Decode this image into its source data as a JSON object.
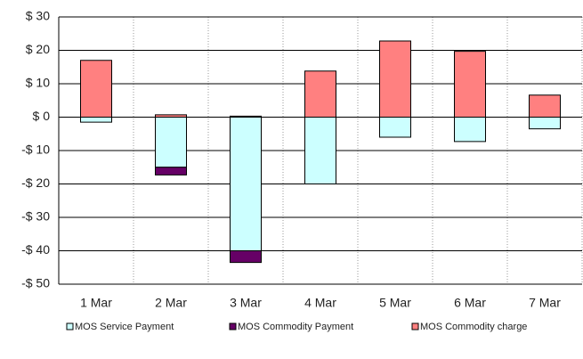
{
  "chart_data": {
    "type": "stacked_bar",
    "categories": [
      "1 Mar",
      "2 Mar",
      "3 Mar",
      "4 Mar",
      "5 Mar",
      "6 Mar",
      "7 Mar"
    ],
    "series": [
      {
        "name": "MOS Service Payment",
        "color": "#ccffff",
        "values": [
          -1.5,
          -15,
          -40,
          -20,
          -6,
          -7.3,
          -3.5
        ]
      },
      {
        "name": "MOS Commodity Payment",
        "color": "#660066",
        "values": [
          0,
          -2.3,
          -3.5,
          0,
          0,
          0,
          0
        ]
      },
      {
        "name": "MOS Commodity charge",
        "color": "#ff8080",
        "values": [
          17,
          0.7,
          0.3,
          13.8,
          22.8,
          19.7,
          6.6
        ]
      }
    ],
    "ylim": [
      -50,
      30
    ],
    "yticks": [
      {
        "value": 30,
        "label": "$ 30"
      },
      {
        "value": 20,
        "label": "$ 20"
      },
      {
        "value": 10,
        "label": "$ 10"
      },
      {
        "value": 0,
        "label": "$ 0"
      },
      {
        "value": -10,
        "label": "-$ 10"
      },
      {
        "value": -20,
        "label": "-$ 20"
      },
      {
        "value": -30,
        "label": "-$ 30"
      },
      {
        "value": -40,
        "label": "-$ 40"
      },
      {
        "value": -50,
        "label": "-$ 50"
      }
    ],
    "grid": true,
    "legend": "bottom"
  }
}
